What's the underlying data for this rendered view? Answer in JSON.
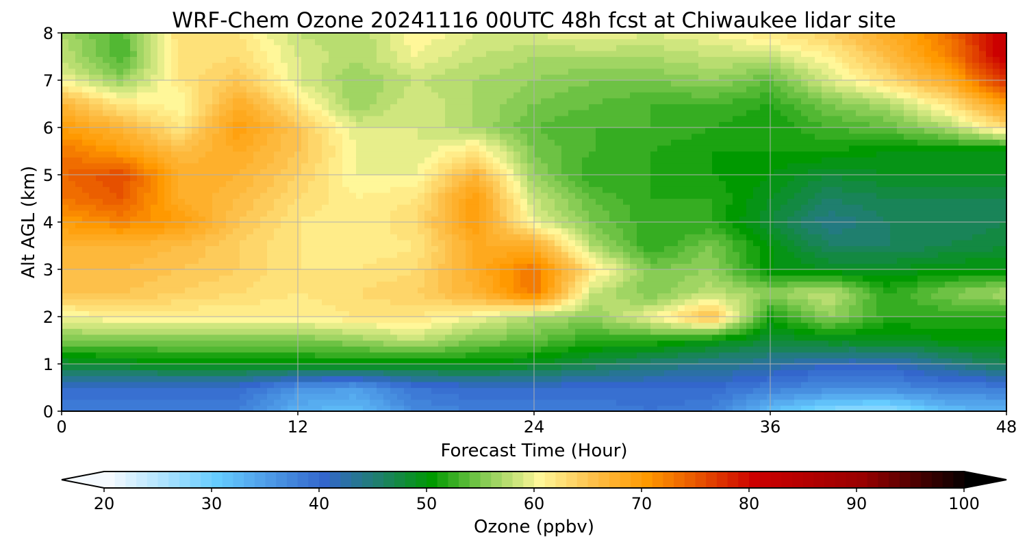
{
  "chart_data": {
    "type": "heatmap",
    "title": "WRF-Chem Ozone  20241116 00UTC 48h fcst at Chiwaukee lidar site",
    "xlabel": "Forecast Time (Hour)",
    "ylabel": "Alt AGL (km)",
    "xlim": [
      0,
      48
    ],
    "ylim": [
      0,
      8
    ],
    "xticks": [
      "0",
      "12",
      "24",
      "36",
      "48"
    ],
    "yticks": [
      "0",
      "1",
      "2",
      "3",
      "4",
      "5",
      "6",
      "7",
      "8"
    ],
    "grid": true,
    "x": [
      0,
      3,
      6,
      9,
      12,
      15,
      18,
      21,
      24,
      27,
      30,
      33,
      36,
      39,
      42,
      45,
      48
    ],
    "y": [
      0,
      0.5,
      1,
      1.5,
      2,
      2.5,
      3,
      3.5,
      4,
      4.5,
      5,
      5.5,
      6,
      6.5,
      7,
      7.5,
      8
    ],
    "z": [
      [
        38,
        38,
        38,
        38,
        33,
        32,
        37,
        38,
        38,
        38,
        39,
        38,
        32,
        28,
        27,
        32,
        33
      ],
      [
        40,
        40,
        40,
        40,
        36,
        35,
        39,
        40,
        40,
        40,
        40,
        40,
        38,
        37,
        37,
        38,
        38
      ],
      [
        48,
        49,
        50,
        50,
        50,
        50,
        50,
        50,
        49,
        47,
        45,
        44,
        43,
        41,
        41,
        44,
        47
      ],
      [
        55,
        55,
        55,
        55,
        55,
        56,
        58,
        55,
        54,
        52,
        52,
        50,
        48,
        49,
        49,
        50,
        50
      ],
      [
        60,
        61,
        61,
        61,
        61,
        62,
        62,
        60,
        57,
        56,
        60,
        66,
        51,
        56,
        52,
        52,
        52
      ],
      [
        65,
        65,
        64,
        63,
        62,
        63,
        64,
        67,
        73,
        58,
        55,
        58,
        56,
        58,
        52,
        55,
        57
      ],
      [
        66,
        66,
        65,
        64,
        62,
        62,
        63,
        68,
        73,
        62,
        55,
        56,
        50,
        49,
        49,
        50,
        50
      ],
      [
        67,
        67,
        66,
        64,
        62,
        61,
        62,
        68,
        68,
        57,
        52,
        55,
        50,
        46,
        46,
        47,
        48
      ],
      [
        70,
        72,
        70,
        65,
        62,
        61,
        63,
        70,
        60,
        55,
        52,
        52,
        48,
        44,
        46,
        46,
        47
      ],
      [
        73,
        75,
        68,
        66,
        63,
        61,
        62,
        70,
        58,
        54,
        52,
        52,
        49,
        46,
        47,
        47,
        47
      ],
      [
        74,
        76,
        68,
        67,
        64,
        60,
        60,
        67,
        56,
        52,
        52,
        51,
        50,
        48,
        49,
        49,
        49
      ],
      [
        73,
        70,
        66,
        68,
        65,
        60,
        59,
        62,
        55,
        53,
        52,
        51,
        51,
        51,
        50,
        50,
        49
      ],
      [
        70,
        67,
        62,
        70,
        65,
        59,
        59,
        57,
        54,
        53,
        53,
        52,
        51,
        53,
        54,
        57,
        63
      ],
      [
        67,
        62,
        60,
        68,
        62,
        56,
        59,
        57,
        55,
        54,
        53,
        53,
        52,
        55,
        57,
        62,
        70
      ],
      [
        60,
        56,
        62,
        65,
        59,
        56,
        58,
        57,
        56,
        55,
        55,
        56,
        54,
        59,
        63,
        68,
        78
      ],
      [
        58,
        53,
        62,
        63,
        59,
        57,
        60,
        58,
        57,
        57,
        57,
        58,
        58,
        61,
        66,
        72,
        82
      ],
      [
        57,
        53,
        63,
        62,
        58,
        57,
        61,
        59,
        59,
        60,
        59,
        60,
        62,
        64,
        68,
        73,
        82
      ]
    ],
    "colorbar": {
      "label": "Ozone  (ppbv)",
      "range": [
        20,
        100
      ],
      "ticks": [
        "20",
        "30",
        "40",
        "50",
        "60",
        "70",
        "80",
        "90",
        "100"
      ],
      "extend": "both",
      "stops": [
        [
          20,
          "#f5faff"
        ],
        [
          30,
          "#66ccff"
        ],
        [
          40,
          "#3366cc"
        ],
        [
          45,
          "#1f7f6e"
        ],
        [
          50,
          "#009900"
        ],
        [
          55,
          "#88cc55"
        ],
        [
          60,
          "#fff799"
        ],
        [
          65,
          "#fdc04a"
        ],
        [
          70,
          "#ff9900"
        ],
        [
          75,
          "#e65000"
        ],
        [
          80,
          "#cc0000"
        ],
        [
          90,
          "#990000"
        ],
        [
          100,
          "#000000"
        ]
      ]
    }
  }
}
